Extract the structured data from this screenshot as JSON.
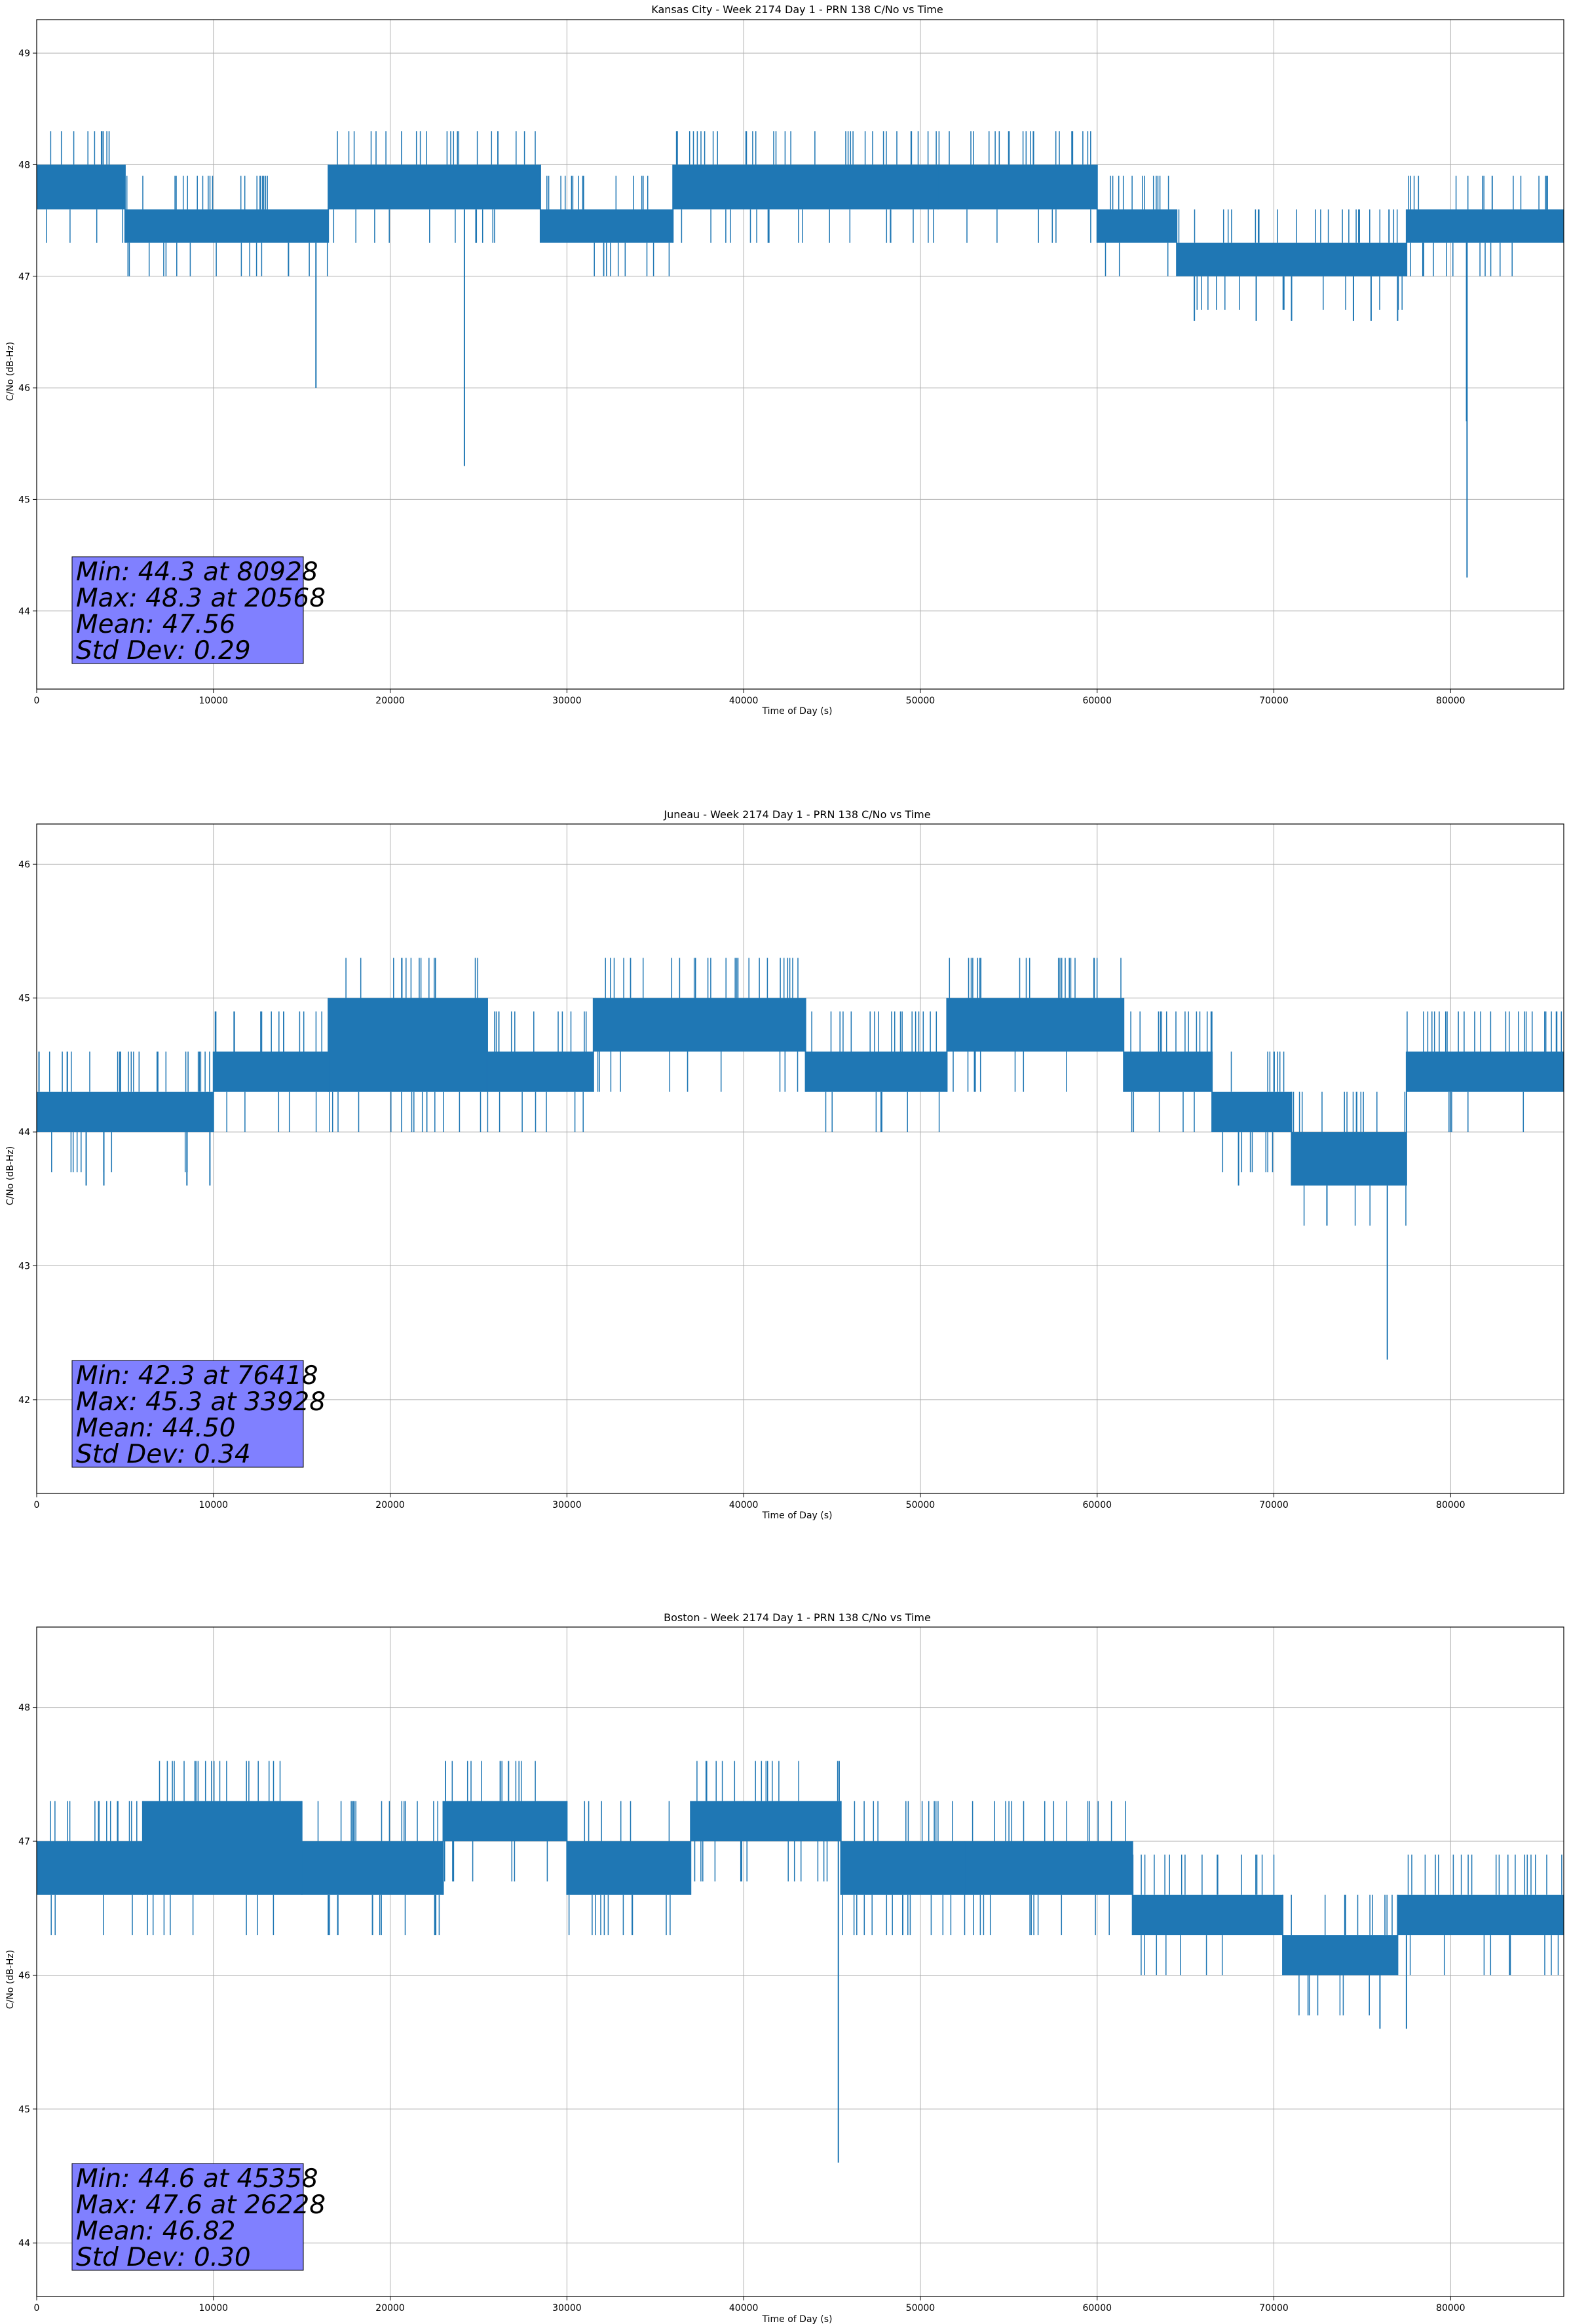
{
  "figure": {
    "background": "#ffffff"
  },
  "colors": {
    "series": "#1f77b4",
    "grid": "#b0b0b0",
    "stats_box": "#8080ff",
    "axis": "#000000"
  },
  "chart_data": [
    {
      "type": "line",
      "title": "Kansas City - Week 2174 Day 1 - PRN 138 C/No vs Time",
      "xlabel": "Time of Day (s)",
      "ylabel": "C/No (dB-Hz)",
      "xlim": [
        0,
        86400
      ],
      "ylim": [
        43.3,
        49.3
      ],
      "xticks": [
        0,
        10000,
        20000,
        30000,
        40000,
        50000,
        60000,
        70000,
        80000
      ],
      "yticks": [
        44,
        45,
        46,
        47,
        48,
        49
      ],
      "grid": true,
      "segments": [
        {
          "x0": 0,
          "x1": 5000,
          "lo": 47.6,
          "hi": 48.0
        },
        {
          "x0": 5000,
          "x1": 16500,
          "lo": 47.3,
          "hi": 47.6
        },
        {
          "x0": 16500,
          "x1": 28500,
          "lo": 47.6,
          "hi": 48.0
        },
        {
          "x0": 28500,
          "x1": 36000,
          "lo": 47.3,
          "hi": 47.6
        },
        {
          "x0": 36000,
          "x1": 51000,
          "lo": 47.6,
          "hi": 48.0
        },
        {
          "x0": 51000,
          "x1": 60000,
          "lo": 47.6,
          "hi": 48.0
        },
        {
          "x0": 60000,
          "x1": 64500,
          "lo": 47.3,
          "hi": 47.6
        },
        {
          "x0": 64500,
          "x1": 77500,
          "lo": 47.0,
          "hi": 47.3
        },
        {
          "x0": 77500,
          "x1": 86400,
          "lo": 47.3,
          "hi": 47.6
        }
      ],
      "spikes": [
        {
          "x": 15800,
          "y": 46.0
        },
        {
          "x": 24200,
          "y": 45.3
        },
        {
          "x": 80928,
          "y": 44.3
        },
        {
          "x": 80900,
          "y": 45.7
        },
        {
          "x": 65500,
          "y": 46.6
        },
        {
          "x": 69000,
          "y": 46.6
        },
        {
          "x": 71000,
          "y": 46.6
        },
        {
          "x": 74500,
          "y": 46.6
        },
        {
          "x": 75500,
          "y": 46.6
        },
        {
          "x": 77000,
          "y": 46.6
        }
      ],
      "stats": {
        "min": "Min: 44.3 at 80928",
        "max": "Max: 48.3 at 20568",
        "mean": "Mean: 47.56",
        "std": "Std Dev: 0.29"
      }
    },
    {
      "type": "line",
      "title": "Juneau - Week 2174 Day 1 - PRN 138 C/No vs Time",
      "xlabel": "Time of Day (s)",
      "ylabel": "C/No (dB-Hz)",
      "xlim": [
        0,
        86400
      ],
      "ylim": [
        41.3,
        46.3
      ],
      "xticks": [
        0,
        10000,
        20000,
        30000,
        40000,
        50000,
        60000,
        70000,
        80000
      ],
      "yticks": [
        42,
        43,
        44,
        45,
        46
      ],
      "grid": true,
      "segments": [
        {
          "x0": 0,
          "x1": 10000,
          "lo": 44.0,
          "hi": 44.3
        },
        {
          "x0": 10000,
          "x1": 16500,
          "lo": 44.3,
          "hi": 44.6
        },
        {
          "x0": 16500,
          "x1": 25500,
          "lo": 44.3,
          "hi": 45.0
        },
        {
          "x0": 25500,
          "x1": 31500,
          "lo": 44.3,
          "hi": 44.6
        },
        {
          "x0": 31500,
          "x1": 43500,
          "lo": 44.6,
          "hi": 45.0
        },
        {
          "x0": 43500,
          "x1": 51500,
          "lo": 44.3,
          "hi": 44.6
        },
        {
          "x0": 51500,
          "x1": 61500,
          "lo": 44.6,
          "hi": 45.0
        },
        {
          "x0": 61500,
          "x1": 66500,
          "lo": 44.3,
          "hi": 44.6
        },
        {
          "x0": 66500,
          "x1": 71000,
          "lo": 44.0,
          "hi": 44.3
        },
        {
          "x0": 71000,
          "x1": 77500,
          "lo": 43.6,
          "hi": 44.0
        },
        {
          "x0": 77500,
          "x1": 86400,
          "lo": 44.3,
          "hi": 44.6
        }
      ],
      "spikes": [
        {
          "x": 2800,
          "y": 43.6
        },
        {
          "x": 3800,
          "y": 43.6
        },
        {
          "x": 8500,
          "y": 43.6
        },
        {
          "x": 9800,
          "y": 43.6
        },
        {
          "x": 68000,
          "y": 43.6
        },
        {
          "x": 73000,
          "y": 43.3
        },
        {
          "x": 76418,
          "y": 42.3
        }
      ],
      "stats": {
        "min": "Min: 42.3 at 76418",
        "max": "Max: 45.3 at 33928",
        "mean": "Mean: 44.50",
        "std": "Std Dev: 0.34"
      }
    },
    {
      "type": "line",
      "title": "Boston - Week 2174 Day 1 - PRN 138 C/No vs Time",
      "xlabel": "Time of Day (s)",
      "ylabel": "C/No (dB-Hz)",
      "xlim": [
        0,
        86400
      ],
      "ylim": [
        43.6,
        48.6
      ],
      "xticks": [
        0,
        10000,
        20000,
        30000,
        40000,
        50000,
        60000,
        70000,
        80000
      ],
      "yticks": [
        44,
        45,
        46,
        47,
        48
      ],
      "grid": true,
      "segments": [
        {
          "x0": 0,
          "x1": 6000,
          "lo": 46.6,
          "hi": 47.0
        },
        {
          "x0": 6000,
          "x1": 15000,
          "lo": 46.6,
          "hi": 47.3
        },
        {
          "x0": 15000,
          "x1": 23000,
          "lo": 46.6,
          "hi": 47.0
        },
        {
          "x0": 23000,
          "x1": 30000,
          "lo": 47.0,
          "hi": 47.3
        },
        {
          "x0": 30000,
          "x1": 37000,
          "lo": 46.6,
          "hi": 47.0
        },
        {
          "x0": 37000,
          "x1": 45500,
          "lo": 47.0,
          "hi": 47.3
        },
        {
          "x0": 45500,
          "x1": 52500,
          "lo": 46.6,
          "hi": 47.0
        },
        {
          "x0": 52500,
          "x1": 62000,
          "lo": 46.6,
          "hi": 47.0
        },
        {
          "x0": 62000,
          "x1": 70500,
          "lo": 46.3,
          "hi": 46.6
        },
        {
          "x0": 70500,
          "x1": 77000,
          "lo": 46.0,
          "hi": 46.3
        },
        {
          "x0": 77000,
          "x1": 86400,
          "lo": 46.3,
          "hi": 46.6
        }
      ],
      "spikes": [
        {
          "x": 26228,
          "y": 47.6
        },
        {
          "x": 45358,
          "y": 44.6
        },
        {
          "x": 49000,
          "y": 46.3
        },
        {
          "x": 16500,
          "y": 46.3
        },
        {
          "x": 19000,
          "y": 46.3
        },
        {
          "x": 76000,
          "y": 45.6
        },
        {
          "x": 77500,
          "y": 45.6
        }
      ],
      "stats": {
        "min": "Min: 44.6 at 45358",
        "max": "Max: 47.6 at 26228",
        "mean": "Mean: 46.82",
        "std": "Std Dev: 0.30"
      }
    }
  ]
}
